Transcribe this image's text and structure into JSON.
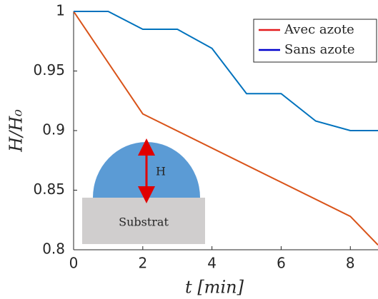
{
  "chart_data": {
    "type": "line",
    "xlabel": "t [min]",
    "ylabel": "H/H₀",
    "x": [
      0,
      1,
      2,
      3,
      4,
      5,
      6,
      7,
      8,
      8.8
    ],
    "series": [
      {
        "name": "Avec azote",
        "color": "#d95319",
        "values": [
          1,
          null,
          0.914,
          null,
          null,
          null,
          null,
          null,
          0.828,
          0.804
        ]
      },
      {
        "name": "Sans azote",
        "color": "#0072bd",
        "values": [
          1,
          1,
          0.985,
          0.985,
          0.969,
          0.931,
          0.931,
          0.908,
          0.9,
          0.9
        ]
      }
    ],
    "legend_colors": [
      "#e31a1c",
      "#0000cc"
    ],
    "xlim": [
      0,
      8.8
    ],
    "ylim": [
      0.8,
      1
    ],
    "xticks": [
      0,
      2,
      4,
      6,
      8
    ],
    "yticks": [
      0.8,
      0.85,
      0.9,
      0.95,
      1
    ],
    "legend_position": "upper right",
    "annotations": {
      "height_label": "H",
      "substrate_label": "Substrat"
    }
  }
}
